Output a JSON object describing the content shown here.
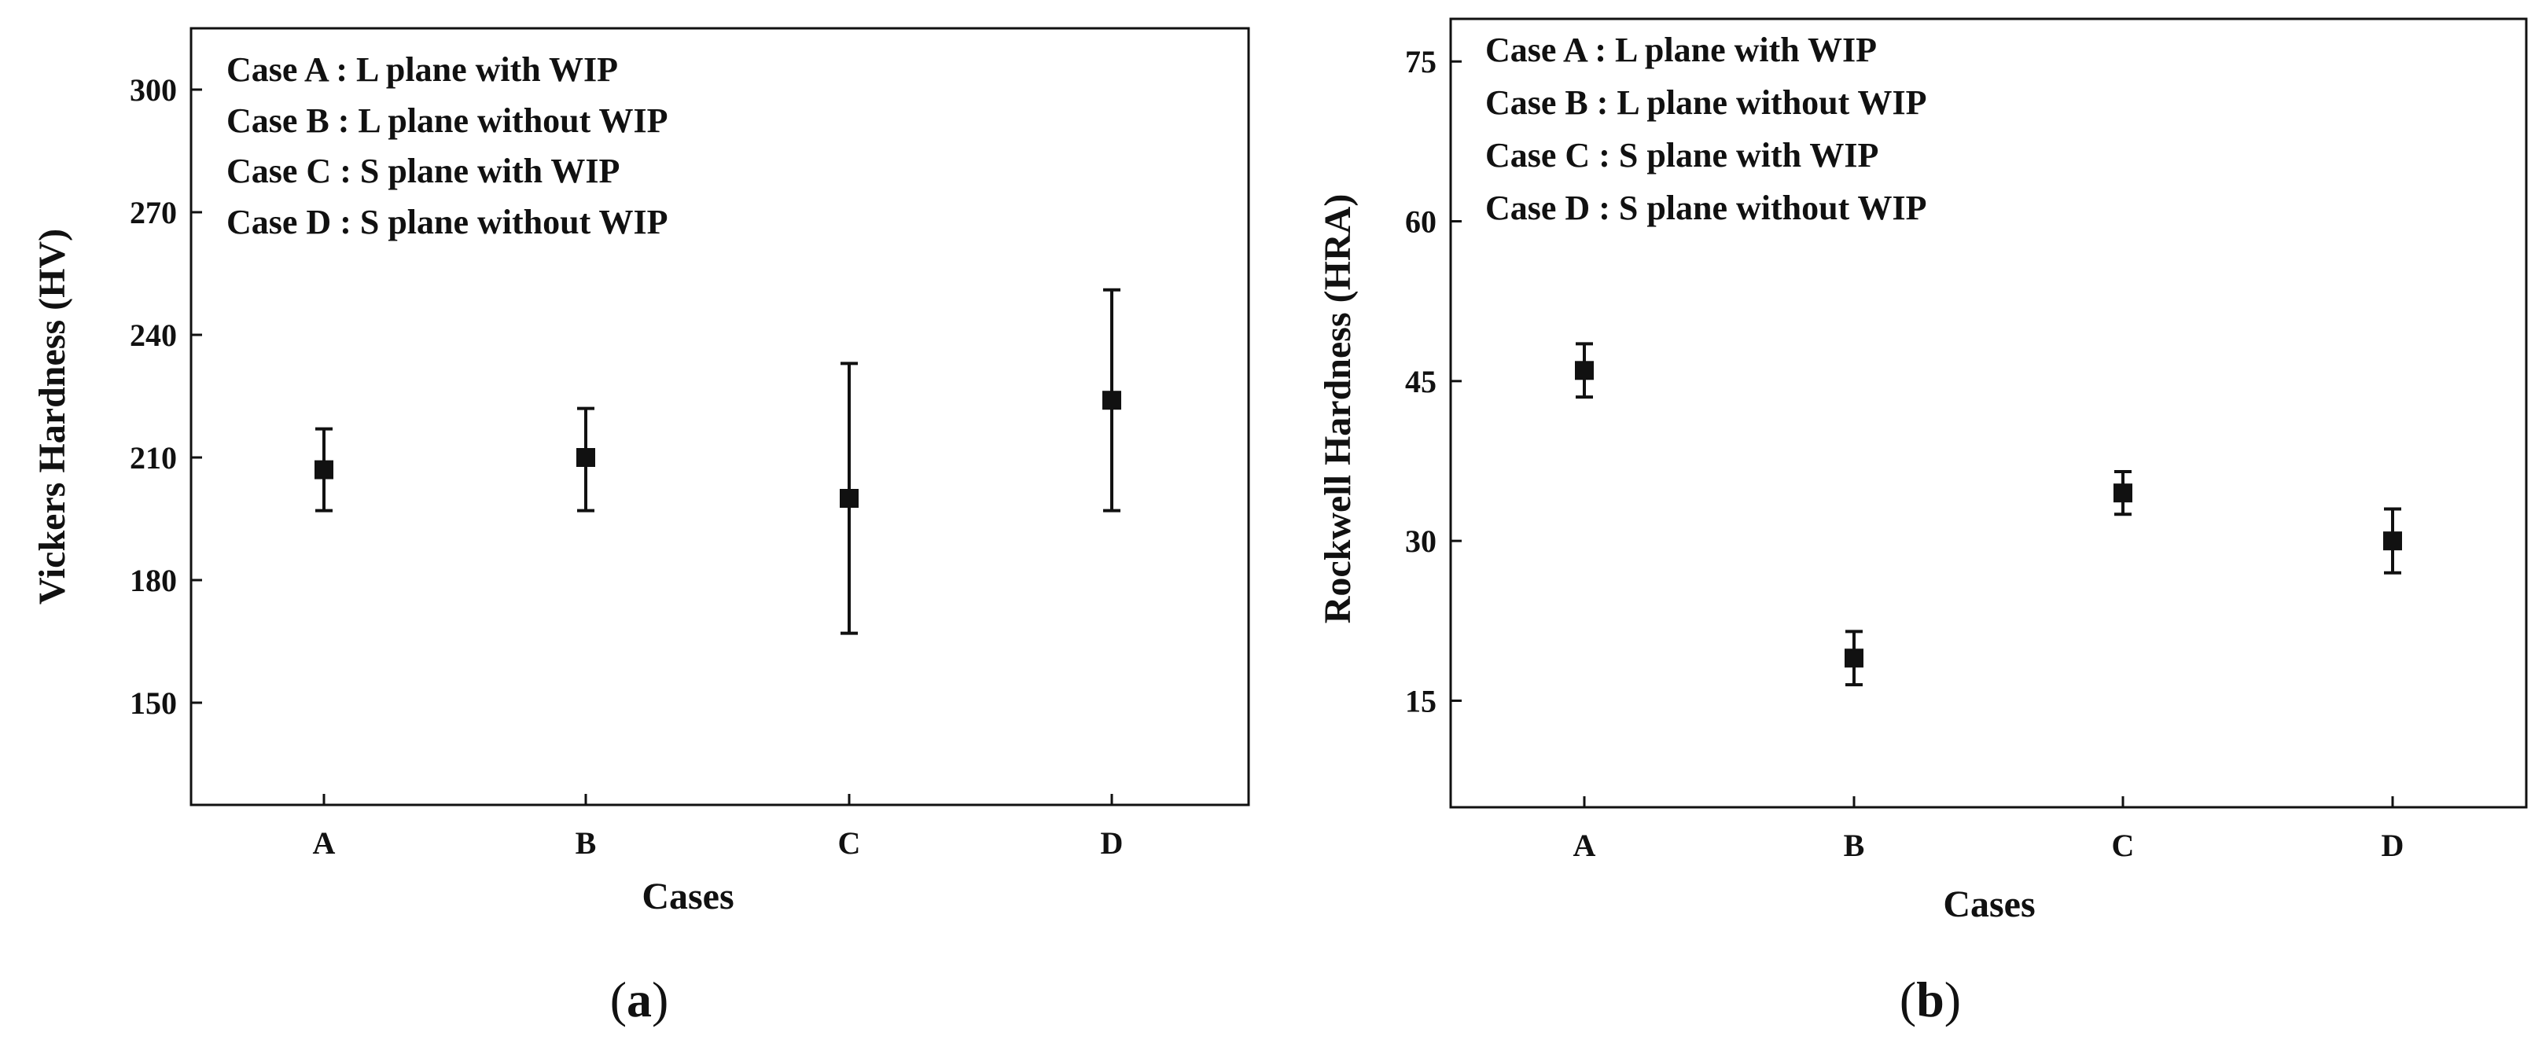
{
  "chart_data": [
    {
      "type": "scatter",
      "categories": [
        "A",
        "B",
        "C",
        "D"
      ],
      "values": [
        207,
        210,
        200,
        224
      ],
      "error_low": [
        197,
        197,
        167,
        197
      ],
      "error_high": [
        217,
        222,
        233,
        251
      ],
      "xlabel": "Cases",
      "ylabel": "Vickers Hardness (HV)",
      "ylim": [
        125,
        315
      ],
      "yticks": [
        150,
        180,
        210,
        240,
        270,
        300
      ],
      "legend": [
        "Case A : L plane with WIP",
        "Case B : L plane without WIP",
        "Case C : S plane with WIP",
        "Case D : S plane without WIP"
      ],
      "legend_position": "top-left",
      "panel_letter": "a",
      "grid": false
    },
    {
      "type": "scatter",
      "categories": [
        "A",
        "B",
        "C",
        "D"
      ],
      "values": [
        46,
        19,
        34.5,
        30
      ],
      "error_low": [
        43.5,
        16.5,
        32.5,
        27
      ],
      "error_high": [
        48.5,
        21.5,
        36.5,
        33
      ],
      "xlabel": "Cases",
      "ylabel": "Rockwell Hardness (HRA)",
      "ylim": [
        5,
        79
      ],
      "yticks": [
        15,
        30,
        45,
        60,
        75
      ],
      "legend": [
        "Case A : L plane with WIP",
        "Case B : L plane without WIP",
        "Case C : S plane with WIP",
        "Case D : S plane without WIP"
      ],
      "legend_position": "top-left",
      "panel_letter": "b",
      "grid": false
    }
  ]
}
